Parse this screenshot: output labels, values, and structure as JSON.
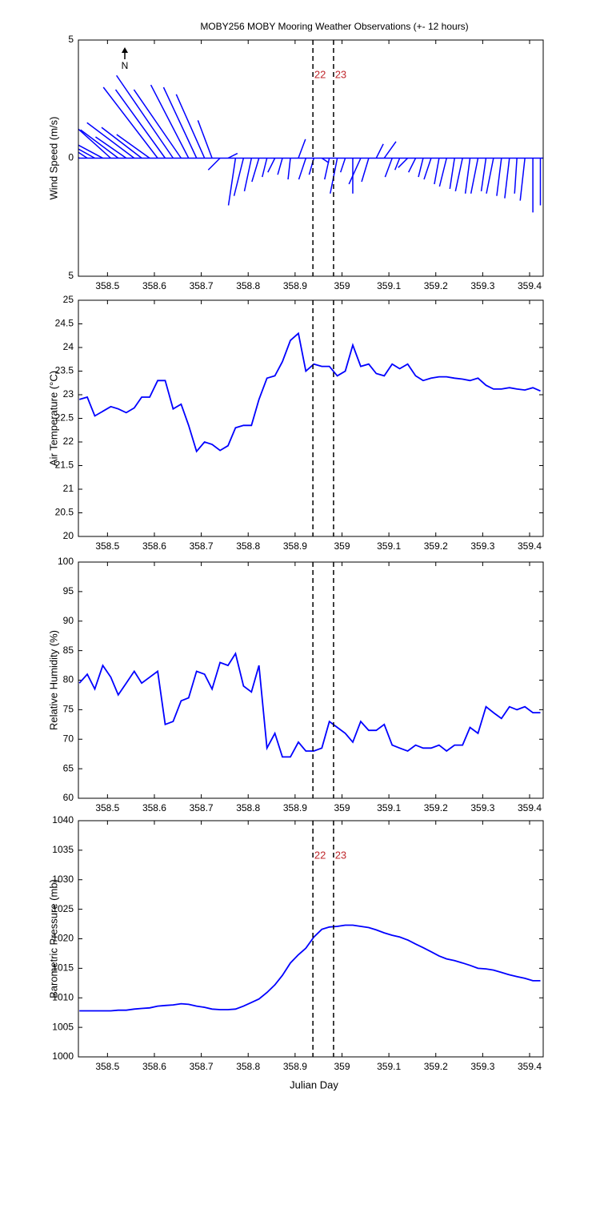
{
  "chart_data": [
    {
      "type": "quiver",
      "title": "MOBY256 MOBY Mooring Weather Observations (+- 12 hours)",
      "ylabel": "Wind Speed (m/s)",
      "north_label": "N",
      "color": "#0000ff",
      "x": [
        358.44,
        358.457,
        358.473,
        358.49,
        358.507,
        358.523,
        358.54,
        358.557,
        358.573,
        358.59,
        358.607,
        358.623,
        358.64,
        358.657,
        358.673,
        358.69,
        358.707,
        358.723,
        358.74,
        358.757,
        358.773,
        358.79,
        358.807,
        358.823,
        358.84,
        358.857,
        358.873,
        358.89,
        358.907,
        358.923,
        358.94,
        358.957,
        358.973,
        358.99,
        359.007,
        359.023,
        359.04,
        359.057,
        359.073,
        359.09,
        359.107,
        359.123,
        359.14,
        359.157,
        359.173,
        359.19,
        359.207,
        359.223,
        359.24,
        359.257,
        359.273,
        359.29,
        359.307,
        359.323,
        359.34,
        359.357,
        359.373,
        359.39,
        359.407,
        359.423
      ],
      "u": [
        -2.2,
        -2.0,
        -1.8,
        -1.5,
        -1.9,
        -1.6,
        -1.3,
        -2.0,
        -1.7,
        -1.4,
        -2.3,
        -2.1,
        -2.4,
        -2.0,
        -1.6,
        -1.4,
        -1.2,
        -0.6,
        -0.5,
        0.4,
        -0.3,
        -0.4,
        -0.3,
        -0.3,
        -0.2,
        -0.3,
        -0.2,
        -0.1,
        0.3,
        -0.3,
        -0.2,
        0.3,
        -0.2,
        -0.3,
        -0.2,
        0.0,
        -0.5,
        -0.3,
        0.3,
        0.5,
        -0.3,
        -0.2,
        -0.4,
        -0.3,
        -0.2,
        -0.3,
        -0.2,
        -0.3,
        -0.2,
        -0.3,
        -0.2,
        -0.3,
        -0.2,
        -0.3,
        -0.2,
        -0.2,
        -0.1,
        -0.2,
        0.0,
        0.0
      ],
      "v": [
        1.5,
        1.3,
        1.0,
        0.8,
        1.7,
        1.2,
        0.9,
        1.5,
        1.3,
        1.0,
        3.0,
        2.9,
        3.5,
        2.9,
        3.1,
        3.0,
        2.7,
        1.6,
        -0.5,
        0.2,
        -2.0,
        -1.6,
        -1.4,
        -1.0,
        -0.8,
        -0.6,
        -0.7,
        -0.9,
        0.8,
        -0.9,
        -0.7,
        -0.2,
        -0.9,
        -1.5,
        -0.6,
        -1.5,
        -1.1,
        -1.0,
        0.6,
        0.7,
        -0.8,
        -0.5,
        -0.4,
        -0.6,
        -0.8,
        -0.9,
        -1.1,
        -1.2,
        -1.3,
        -1.4,
        -1.5,
        -1.5,
        -1.4,
        -1.5,
        -1.6,
        -1.7,
        -1.5,
        -1.8,
        -2.3,
        -2.0
      ],
      "xlim": [
        358.438,
        359.429
      ],
      "xticks": [
        358.5,
        358.6,
        358.7,
        358.8,
        358.9,
        359,
        359.1,
        359.2,
        359.3,
        359.4
      ],
      "ylim": [
        -5,
        5
      ],
      "yticks": [
        {
          "value": -5,
          "label": "5"
        },
        0,
        5
      ],
      "vlines": [
        {
          "value": 358.938,
          "label": "22"
        },
        {
          "value": 358.982,
          "label": "23"
        }
      ]
    },
    {
      "type": "line",
      "ylabel": "Air Temperature (°C)",
      "color": "#0000ff",
      "x": [
        358.44,
        358.457,
        358.473,
        358.49,
        358.507,
        358.523,
        358.54,
        358.557,
        358.573,
        358.59,
        358.607,
        358.623,
        358.64,
        358.657,
        358.673,
        358.69,
        358.707,
        358.723,
        358.74,
        358.757,
        358.773,
        358.79,
        358.807,
        358.823,
        358.84,
        358.857,
        358.873,
        358.89,
        358.907,
        358.923,
        358.94,
        358.957,
        358.973,
        358.99,
        359.007,
        359.023,
        359.04,
        359.057,
        359.073,
        359.09,
        359.107,
        359.123,
        359.14,
        359.157,
        359.173,
        359.19,
        359.207,
        359.223,
        359.24,
        359.257,
        359.273,
        359.29,
        359.307,
        359.323,
        359.34,
        359.357,
        359.373,
        359.39,
        359.407,
        359.423
      ],
      "values": [
        22.9,
        22.95,
        22.55,
        22.65,
        22.75,
        22.7,
        22.62,
        22.72,
        22.95,
        22.95,
        23.3,
        23.3,
        22.7,
        22.8,
        22.35,
        21.8,
        22.0,
        21.95,
        21.82,
        21.92,
        22.3,
        22.35,
        22.35,
        22.9,
        23.35,
        23.4,
        23.7,
        24.15,
        24.3,
        23.5,
        23.65,
        23.6,
        23.6,
        23.4,
        23.5,
        24.05,
        23.6,
        23.65,
        23.45,
        23.4,
        23.65,
        23.55,
        23.65,
        23.4,
        23.3,
        23.35,
        23.38,
        23.38,
        23.35,
        23.33,
        23.3,
        23.35,
        23.2,
        23.12,
        23.12,
        23.15,
        23.12,
        23.1,
        23.15,
        23.08
      ],
      "xlim": [
        358.438,
        359.429
      ],
      "xticks": [
        358.5,
        358.6,
        358.7,
        358.8,
        358.9,
        359,
        359.1,
        359.2,
        359.3,
        359.4
      ],
      "ylim": [
        20,
        25
      ],
      "yticks": [
        20,
        20.5,
        21,
        21.5,
        22,
        22.5,
        23,
        23.5,
        24,
        24.5,
        25
      ],
      "vlines": [
        358.938,
        358.982
      ]
    },
    {
      "type": "line",
      "ylabel": "Relative Humidity (%)",
      "color": "#0000ff",
      "x": [
        358.44,
        358.457,
        358.473,
        358.49,
        358.507,
        358.523,
        358.54,
        358.557,
        358.573,
        358.59,
        358.607,
        358.623,
        358.64,
        358.657,
        358.673,
        358.69,
        358.707,
        358.723,
        358.74,
        358.757,
        358.773,
        358.79,
        358.807,
        358.823,
        358.84,
        358.857,
        358.873,
        358.89,
        358.907,
        358.923,
        358.94,
        358.957,
        358.973,
        358.99,
        359.007,
        359.023,
        359.04,
        359.057,
        359.073,
        359.09,
        359.107,
        359.123,
        359.14,
        359.157,
        359.173,
        359.19,
        359.207,
        359.223,
        359.24,
        359.257,
        359.273,
        359.29,
        359.307,
        359.323,
        359.34,
        359.357,
        359.373,
        359.39,
        359.407,
        359.423
      ],
      "values": [
        79.5,
        81,
        78.5,
        82.5,
        80.5,
        77.5,
        79.5,
        81.5,
        79.5,
        80.5,
        81.5,
        72.5,
        73,
        76.5,
        77,
        81.5,
        81,
        78.5,
        83,
        82.5,
        84.5,
        79,
        78,
        82.5,
        68.5,
        71,
        67,
        67,
        69.5,
        68,
        68,
        68.5,
        73,
        72,
        71,
        69.5,
        73,
        71.5,
        71.5,
        72.5,
        69,
        68.5,
        68,
        69,
        68.5,
        68.5,
        69,
        68,
        69,
        69,
        72,
        71,
        75.5,
        74.5,
        73.5,
        75.5,
        75,
        75.5,
        74.5,
        74.5
      ],
      "xlim": [
        358.438,
        359.429
      ],
      "xticks": [
        358.5,
        358.6,
        358.7,
        358.8,
        358.9,
        359,
        359.1,
        359.2,
        359.3,
        359.4
      ],
      "ylim": [
        60,
        100
      ],
      "yticks": [
        60,
        65,
        70,
        75,
        80,
        85,
        90,
        95,
        100
      ],
      "vlines": [
        358.938,
        358.982
      ]
    },
    {
      "type": "line",
      "ylabel": "Barometric Pressure (mb)",
      "xlabel": "Julian Day",
      "color": "#0000ff",
      "x": [
        358.44,
        358.457,
        358.473,
        358.49,
        358.507,
        358.523,
        358.54,
        358.557,
        358.573,
        358.59,
        358.607,
        358.623,
        358.64,
        358.657,
        358.673,
        358.69,
        358.707,
        358.723,
        358.74,
        358.757,
        358.773,
        358.79,
        358.807,
        358.823,
        358.84,
        358.857,
        358.873,
        358.89,
        358.907,
        358.923,
        358.94,
        358.957,
        358.973,
        358.99,
        359.007,
        359.023,
        359.04,
        359.057,
        359.073,
        359.09,
        359.107,
        359.123,
        359.14,
        359.157,
        359.173,
        359.19,
        359.207,
        359.223,
        359.24,
        359.257,
        359.273,
        359.29,
        359.307,
        359.323,
        359.34,
        359.357,
        359.373,
        359.39,
        359.407,
        359.423
      ],
      "values": [
        1007.8,
        1007.8,
        1007.8,
        1007.8,
        1007.8,
        1007.9,
        1007.9,
        1008.1,
        1008.2,
        1008.3,
        1008.6,
        1008.7,
        1008.8,
        1009,
        1008.9,
        1008.6,
        1008.4,
        1008.1,
        1008,
        1008,
        1008.1,
        1008.6,
        1009.2,
        1009.8,
        1010.9,
        1012.2,
        1013.8,
        1015.9,
        1017.3,
        1018.4,
        1020.3,
        1021.6,
        1022,
        1022.1,
        1022.3,
        1022.3,
        1022.1,
        1021.9,
        1021.5,
        1021,
        1020.6,
        1020.3,
        1019.8,
        1019.1,
        1018.5,
        1017.8,
        1017.1,
        1016.6,
        1016.3,
        1015.9,
        1015.5,
        1015,
        1014.9,
        1014.7,
        1014.3,
        1013.9,
        1013.6,
        1013.3,
        1012.9,
        1012.9
      ],
      "xlim": [
        358.438,
        359.429
      ],
      "xticks": [
        358.5,
        358.6,
        358.7,
        358.8,
        358.9,
        359,
        359.1,
        359.2,
        359.3,
        359.4
      ],
      "ylim": [
        1000,
        1040
      ],
      "yticks": [
        1000,
        1005,
        1010,
        1015,
        1020,
        1025,
        1030,
        1035,
        1040
      ],
      "vlines": [
        {
          "value": 358.938,
          "label": "22"
        },
        {
          "value": 358.982,
          "label": "23"
        }
      ]
    }
  ]
}
